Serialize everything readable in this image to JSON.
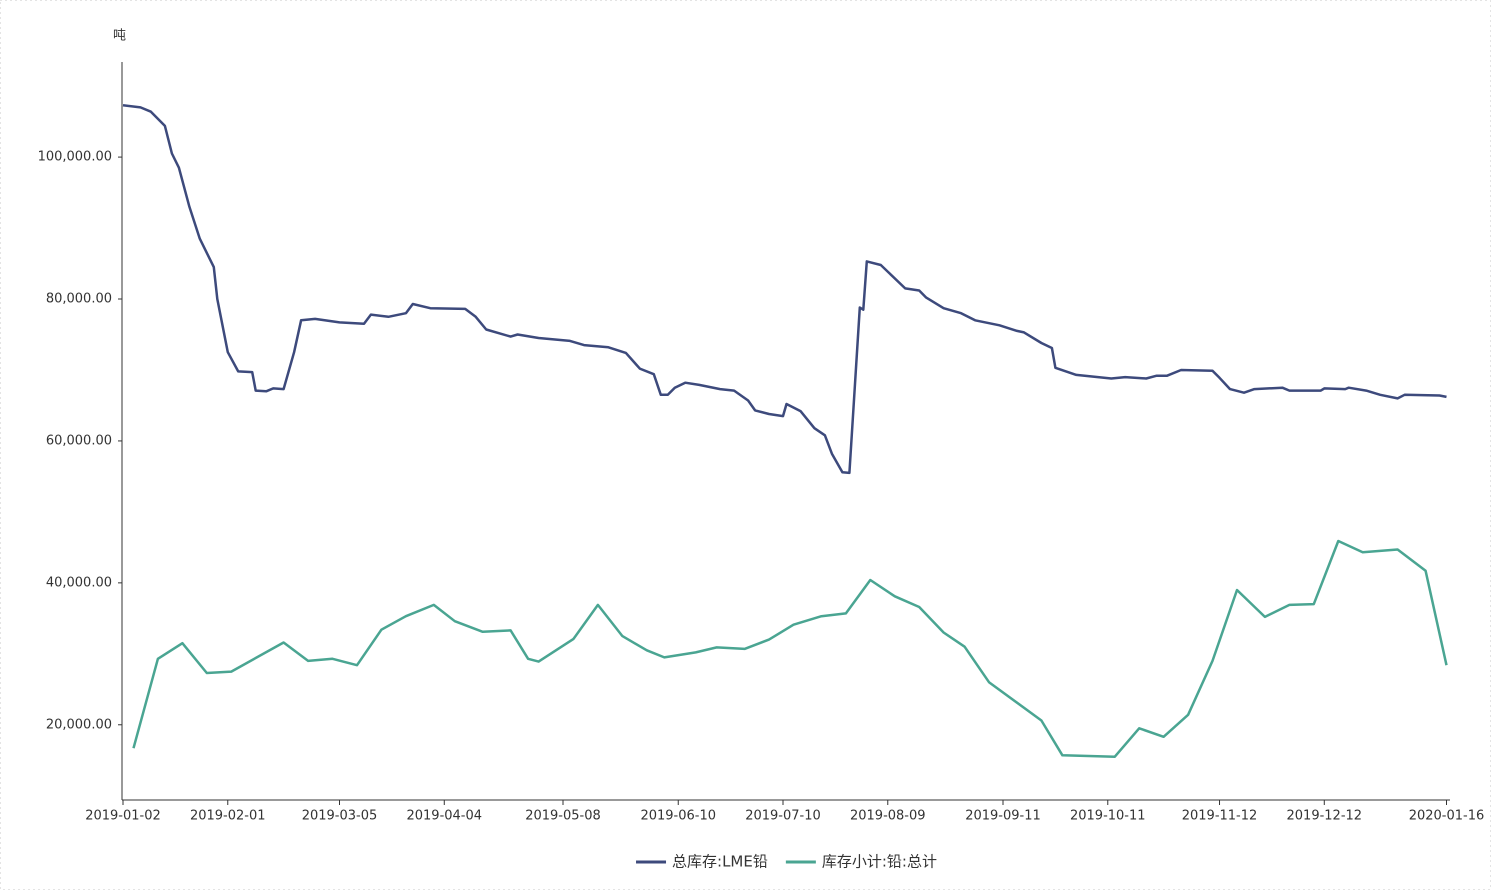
{
  "chart_data": {
    "type": "line",
    "y_axis_label": "吨",
    "xlim": [
      "2019-01-02",
      "2020-01-17"
    ],
    "xticks": [
      "2019-01-02",
      "2019-02-01",
      "2019-03-05",
      "2019-04-04",
      "2019-05-08",
      "2019-06-10",
      "2019-07-10",
      "2019-08-09",
      "2019-09-11",
      "2019-10-11",
      "2019-11-12",
      "2019-12-12",
      "2020-01-16"
    ],
    "ylim": [
      9400,
      113400
    ],
    "yticks": [
      {
        "value": 20000,
        "label": "20,000.00"
      },
      {
        "value": 40000,
        "label": "40,000.00"
      },
      {
        "value": 60000,
        "label": "60,000.00"
      },
      {
        "value": 80000,
        "label": "80,000.00"
      },
      {
        "value": 100000,
        "label": "100,000.00"
      }
    ],
    "grid": false,
    "legend": "bottom",
    "series": [
      {
        "name": "总库存:LME铅",
        "color": "#3d4a7c",
        "x": [
          "2019-01-02",
          "2019-01-07",
          "2019-01-10",
          "2019-01-14",
          "2019-01-16",
          "2019-01-18",
          "2019-01-21",
          "2019-01-24",
          "2019-01-28",
          "2019-01-29",
          "2019-02-01",
          "2019-02-04",
          "2019-02-08",
          "2019-02-09",
          "2019-02-12",
          "2019-02-14",
          "2019-02-17",
          "2019-02-20",
          "2019-02-22",
          "2019-02-26",
          "2019-03-05",
          "2019-03-12",
          "2019-03-14",
          "2019-03-19",
          "2019-03-24",
          "2019-03-26",
          "2019-03-31",
          "2019-04-10",
          "2019-04-13",
          "2019-04-16",
          "2019-04-23",
          "2019-04-25",
          "2019-05-01",
          "2019-05-10",
          "2019-05-14",
          "2019-05-21",
          "2019-05-26",
          "2019-05-30",
          "2019-06-03",
          "2019-06-05",
          "2019-06-07",
          "2019-06-09",
          "2019-06-12",
          "2019-06-16",
          "2019-06-22",
          "2019-06-26",
          "2019-06-30",
          "2019-07-02",
          "2019-07-06",
          "2019-07-10",
          "2019-07-11",
          "2019-07-15",
          "2019-07-19",
          "2019-07-22",
          "2019-07-24",
          "2019-07-27",
          "2019-07-29",
          "2019-08-01",
          "2019-08-02",
          "2019-08-03",
          "2019-08-07",
          "2019-08-14",
          "2019-08-18",
          "2019-08-20",
          "2019-08-25",
          "2019-08-30",
          "2019-09-03",
          "2019-09-10",
          "2019-09-15",
          "2019-09-17",
          "2019-09-22",
          "2019-09-25",
          "2019-09-26",
          "2019-10-02",
          "2019-10-12",
          "2019-10-16",
          "2019-10-22",
          "2019-10-25",
          "2019-10-28",
          "2019-11-01",
          "2019-11-10",
          "2019-11-12",
          "2019-11-15",
          "2019-11-19",
          "2019-11-22",
          "2019-11-30",
          "2019-12-02",
          "2019-12-11",
          "2019-12-12",
          "2019-12-18",
          "2019-12-19",
          "2019-12-24",
          "2019-12-28",
          "2020-01-02",
          "2020-01-04",
          "2020-01-14",
          "2020-01-16"
        ],
        "values": [
          107300,
          107000,
          106400,
          104400,
          100500,
          98500,
          93000,
          88500,
          84500,
          80000,
          72500,
          69800,
          69700,
          67100,
          67000,
          67400,
          67300,
          72500,
          77000,
          77200,
          76700,
          76500,
          77800,
          77500,
          78000,
          79300,
          78700,
          78600,
          77500,
          75700,
          74700,
          75000,
          74500,
          74100,
          73500,
          73200,
          72400,
          70200,
          69400,
          66500,
          66500,
          67500,
          68200,
          67900,
          67300,
          67100,
          65700,
          64300,
          63800,
          63500,
          65200,
          64200,
          61800,
          60800,
          58200,
          55600,
          55500,
          78800,
          78500,
          85300,
          84800,
          81500,
          81200,
          80200,
          78700,
          78000,
          77000,
          76300,
          75500,
          75300,
          73800,
          73100,
          70300,
          69300,
          68800,
          69000,
          68800,
          69200,
          69200,
          70000,
          69900,
          68900,
          67300,
          66800,
          67300,
          67500,
          67100,
          67100,
          67400,
          67300,
          67500,
          67100,
          66500,
          66000,
          66500,
          66400,
          66200
        ]
      },
      {
        "name": "库存小计:铅:总计",
        "color": "#4aa592",
        "x": [
          "2019-01-05",
          "2019-01-12",
          "2019-01-19",
          "2019-01-26",
          "2019-02-02",
          "2019-02-17",
          "2019-02-24",
          "2019-03-03",
          "2019-03-10",
          "2019-03-17",
          "2019-03-24",
          "2019-04-01",
          "2019-04-07",
          "2019-04-15",
          "2019-04-23",
          "2019-04-28",
          "2019-05-01",
          "2019-05-11",
          "2019-05-18",
          "2019-05-25",
          "2019-06-01",
          "2019-06-06",
          "2019-06-15",
          "2019-06-21",
          "2019-06-29",
          "2019-07-06",
          "2019-07-13",
          "2019-07-21",
          "2019-07-28",
          "2019-08-04",
          "2019-08-11",
          "2019-08-18",
          "2019-08-25",
          "2019-08-31",
          "2019-09-07",
          "2019-09-22",
          "2019-09-28",
          "2019-10-13",
          "2019-10-20",
          "2019-10-27",
          "2019-11-03",
          "2019-11-10",
          "2019-11-17",
          "2019-11-25",
          "2019-12-02",
          "2019-12-09",
          "2019-12-16",
          "2019-12-23",
          "2020-01-02",
          "2020-01-10",
          "2020-01-16"
        ],
        "values": [
          16700,
          29300,
          31500,
          27300,
          27500,
          31600,
          29000,
          29300,
          28400,
          33400,
          35300,
          36900,
          34600,
          33100,
          33300,
          29300,
          28900,
          32100,
          36900,
          32500,
          30500,
          29500,
          30200,
          30900,
          30700,
          32000,
          34100,
          35300,
          35700,
          40400,
          38100,
          36600,
          33000,
          31000,
          26000,
          20600,
          15700,
          15500,
          19500,
          18300,
          21400,
          29000,
          39000,
          35200,
          36900,
          37000,
          45900,
          44300,
          44700,
          41700,
          28400
        ]
      }
    ]
  }
}
